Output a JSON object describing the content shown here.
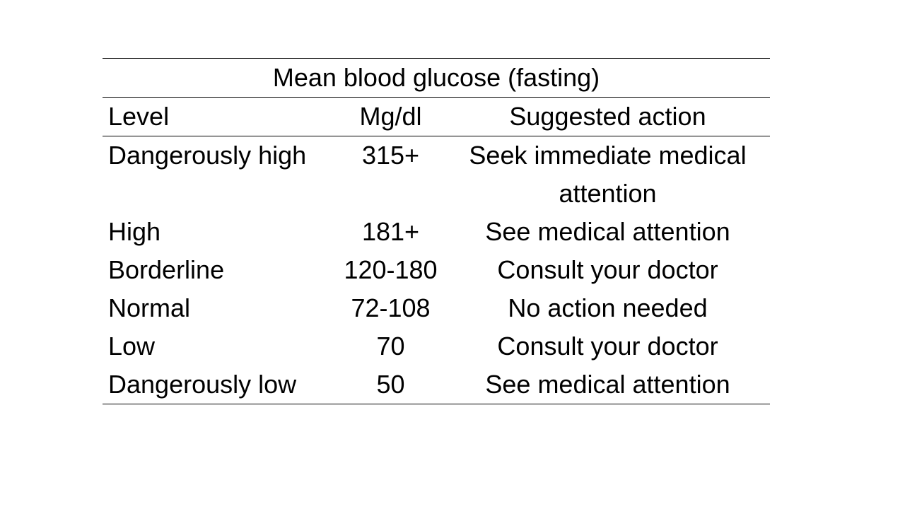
{
  "table": {
    "caption": "Mean blood glucose (fasting)",
    "headers": [
      "Level",
      "Mg/dl",
      "Suggested action"
    ],
    "rows": [
      {
        "level": "Dangerously high",
        "mgdl": "315+",
        "action": "Seek immediate medical attention"
      },
      {
        "level": "High",
        "mgdl": "181+",
        "action": "See medical attention"
      },
      {
        "level": "Borderline",
        "mgdl": "120-180",
        "action": "Consult your doctor"
      },
      {
        "level": "Normal",
        "mgdl": "72-108",
        "action": "No action needed"
      },
      {
        "level": "Low",
        "mgdl": "70",
        "action": "Consult your doctor"
      },
      {
        "level": "Dangerously low",
        "mgdl": "50",
        "action": "See medical attention"
      }
    ]
  }
}
